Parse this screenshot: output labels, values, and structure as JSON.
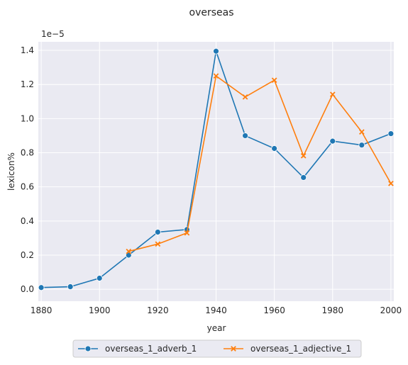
{
  "chart_data": {
    "type": "line",
    "title": "overseas",
    "xlabel": "year",
    "ylabel": "lexicon%",
    "y_scale_label": "1e−5",
    "xlim": [
      1879,
      2001
    ],
    "ylim": [
      -0.07,
      1.45
    ],
    "x_ticks": [
      1880,
      1900,
      1920,
      1940,
      1960,
      1980,
      2000
    ],
    "y_ticks": [
      0.0,
      0.2,
      0.4,
      0.6,
      0.8,
      1.0,
      1.2,
      1.4
    ],
    "y_tick_labels": [
      "0.0",
      "0.2",
      "0.4",
      "0.6",
      "0.8",
      "1.0",
      "1.2",
      "1.4"
    ],
    "grid": true,
    "legend_position": "bottom-center",
    "series": [
      {
        "name": "overseas_1_adverb_1",
        "color": "#1f77b4",
        "marker": "circle",
        "x": [
          1880,
          1890,
          1900,
          1910,
          1920,
          1930,
          1940,
          1950,
          1960,
          1970,
          1980,
          1990,
          2000
        ],
        "y": [
          0.01,
          0.015,
          0.065,
          0.2,
          0.335,
          0.35,
          1.395,
          0.9,
          0.825,
          0.655,
          0.868,
          0.845,
          0.912
        ]
      },
      {
        "name": "overseas_1_adjective_1",
        "color": "#ff7f0e",
        "marker": "x",
        "x": [
          1910,
          1920,
          1930,
          1940,
          1950,
          1960,
          1970,
          1980,
          1990,
          2000
        ],
        "y": [
          0.222,
          0.265,
          0.33,
          1.25,
          1.127,
          1.225,
          0.782,
          1.142,
          0.922,
          0.62
        ]
      }
    ]
  }
}
